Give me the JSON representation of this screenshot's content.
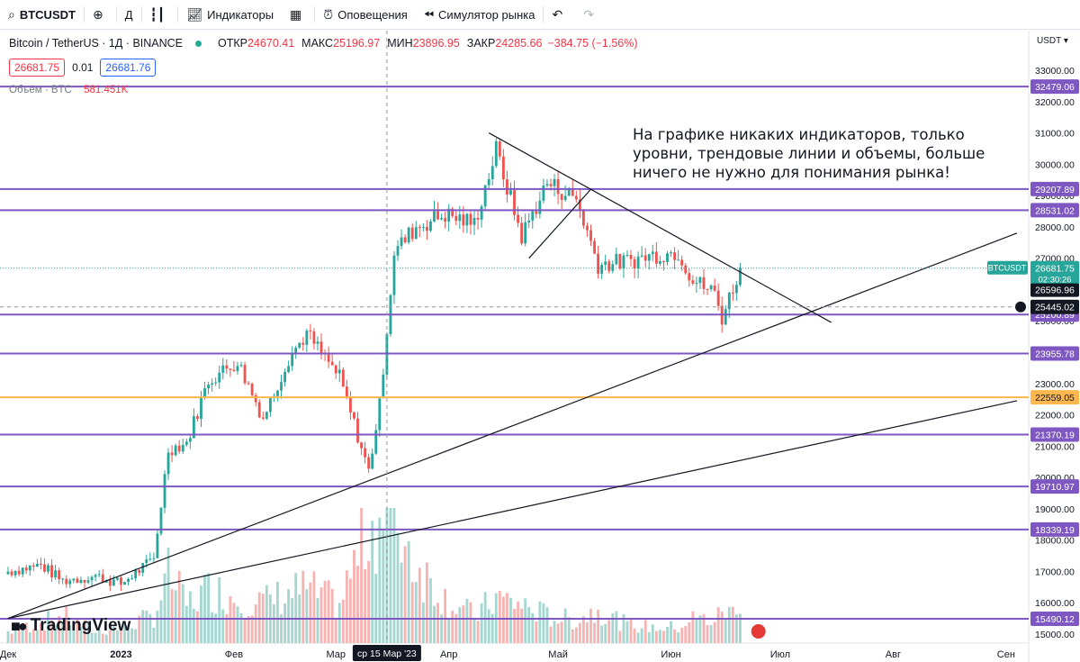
{
  "toolbar": {
    "symbol": "BTCUSDT",
    "interval": "Д",
    "indicators": "Индикаторы",
    "alerts": "Оповещения",
    "replay": "Симулятор рынка"
  },
  "legend": {
    "title": "Bitcoin / TetherUS · 1Д · BINANCE",
    "open_label": "ОТКР",
    "open": "24670.41",
    "high_label": "МАКС",
    "high": "25196.97",
    "low_label": "МИН",
    "low": "23896.95",
    "close_label": "ЗАКР",
    "close": "24285.66",
    "change": "−384.75 (−1.56%)"
  },
  "price_boxes": {
    "sell": "26681.75",
    "spread": "0.01",
    "buy": "26681.76"
  },
  "volume_legend": {
    "label": "Объём · BTC",
    "value": "581.451K"
  },
  "annotation": "На графике никаких индикаторов, только уровни, трендовые линии и объемы, больше ничего не нужно для понимания рынка!",
  "brand": "TradingView",
  "currency": "USDT",
  "colors": {
    "up": "#26a69a",
    "down": "#ef5350",
    "level": "#7e57c2",
    "level_highlight": "#ffb74d",
    "trend": "#131722"
  },
  "chart_data": {
    "type": "candlestick",
    "y_axis": {
      "min": 15000,
      "max": 33500,
      "ticks": [
        15000,
        16000,
        17000,
        18000,
        19000,
        20000,
        21000,
        22000,
        23000,
        24000,
        25000,
        26000,
        27000,
        28000,
        29000,
        30000,
        31000,
        32000,
        33000
      ],
      "tick_labels": [
        "15000.00",
        "16000.00",
        "17000.00",
        "18000.00",
        "19000.00",
        "20000.00",
        "21000.00",
        "22000.00",
        "23000.00",
        "24000.00",
        "25000.00",
        "26000.00",
        "27000.00",
        "28000.00",
        "29000.00",
        "30000.00",
        "31000.00",
        "32000.00",
        "33000.00"
      ]
    },
    "x_axis": {
      "labels": [
        {
          "text": "Дек",
          "date": "2022-12-01"
        },
        {
          "text": "2023",
          "date": "2023-01-01"
        },
        {
          "text": "Фев",
          "date": "2023-02-01"
        },
        {
          "text": "Мар",
          "date": "2023-03-01"
        },
        {
          "text": "Апр",
          "date": "2023-04-01"
        },
        {
          "text": "Май",
          "date": "2023-05-01"
        },
        {
          "text": "Июн",
          "date": "2023-06-01"
        },
        {
          "text": "Июл",
          "date": "2023-07-01"
        },
        {
          "text": "Авг",
          "date": "2023-08-01"
        },
        {
          "text": "Сен",
          "date": "2023-09-01"
        }
      ],
      "range": [
        "2022-12-01",
        "2023-09-04"
      ],
      "crosshair_label": "ср 15 Мар '23",
      "crosshair_date": "2023-03-15"
    },
    "levels": [
      {
        "value": 32479.06,
        "label": "32479.06",
        "highlight": false
      },
      {
        "value": 29207.89,
        "label": "29207.89",
        "highlight": false
      },
      {
        "value": 28531.02,
        "label": "28531.02",
        "highlight": false
      },
      {
        "value": 25200.89,
        "label": "25200.89",
        "highlight": false
      },
      {
        "value": 23955.78,
        "label": "23955.78",
        "highlight": false
      },
      {
        "value": 22559.05,
        "label": "22559.05",
        "highlight": true
      },
      {
        "value": 21370.19,
        "label": "21370.19",
        "highlight": false
      },
      {
        "value": 19710.97,
        "label": "19710.97",
        "highlight": false
      },
      {
        "value": 18339.19,
        "label": "18339.19",
        "highlight": false
      },
      {
        "value": 15490.12,
        "label": "15490.12",
        "highlight": false
      }
    ],
    "last_price": {
      "value": 26681.75,
      "label": "BTCUSDT",
      "price_label": "26681.75",
      "countdown": "02:30:26"
    },
    "extra_price_label": {
      "value": 26596.96,
      "label": "26596.96"
    },
    "crosshair_price": {
      "value": 25445.02,
      "label": "25445.02"
    },
    "trendlines": [
      {
        "x1": "2022-12-01",
        "y1": 15500,
        "x2": "2023-09-04",
        "y2": 27800
      },
      {
        "x1": "2022-12-01",
        "y1": 15500,
        "x2": "2023-09-04",
        "y2": 22450
      },
      {
        "x1": "2023-04-12",
        "y1": 31000,
        "x2": "2023-07-15",
        "y2": 24950
      },
      {
        "x1": "2023-04-23",
        "y1": 27000,
        "x2": "2023-05-10",
        "y2": 29200
      }
    ],
    "anchors": [
      [
        "2022-12-01",
        17000,
        5000
      ],
      [
        "2022-12-10",
        17200,
        9000
      ],
      [
        "2022-12-16",
        16700,
        12000
      ],
      [
        "2022-12-25",
        16850,
        5000
      ],
      [
        "2023-01-01",
        16600,
        7000
      ],
      [
        "2023-01-10",
        17400,
        12000
      ],
      [
        "2023-01-14",
        20900,
        30000
      ],
      [
        "2023-01-19",
        21100,
        17000
      ],
      [
        "2023-01-25",
        23100,
        24000
      ],
      [
        "2023-02-02",
        23700,
        20000
      ],
      [
        "2023-02-09",
        21900,
        18000
      ],
      [
        "2023-02-16",
        23800,
        22000
      ],
      [
        "2023-02-21",
        24600,
        24000
      ],
      [
        "2023-03-02",
        23200,
        17000
      ],
      [
        "2023-03-10",
        20200,
        52000
      ],
      [
        "2023-03-13",
        22300,
        55000
      ],
      [
        "2023-03-17",
        27200,
        58000
      ],
      [
        "2023-03-23",
        28000,
        35000
      ],
      [
        "2023-03-31",
        28400,
        20000
      ],
      [
        "2023-04-08",
        28100,
        12000
      ],
      [
        "2023-04-14",
        30450,
        20000
      ],
      [
        "2023-04-21",
        27700,
        17000
      ],
      [
        "2023-04-28",
        29400,
        12000
      ],
      [
        "2023-05-06",
        28900,
        10000
      ],
      [
        "2023-05-12",
        26800,
        15000
      ],
      [
        "2023-05-20",
        26900,
        8000
      ],
      [
        "2023-05-27",
        27100,
        7000
      ],
      [
        "2023-06-03",
        27200,
        7000
      ],
      [
        "2023-06-07",
        26300,
        11000
      ],
      [
        "2023-06-13",
        25900,
        10000
      ],
      [
        "2023-06-15",
        25100,
        14000
      ],
      [
        "2023-06-20",
        26700,
        13000
      ]
    ]
  }
}
